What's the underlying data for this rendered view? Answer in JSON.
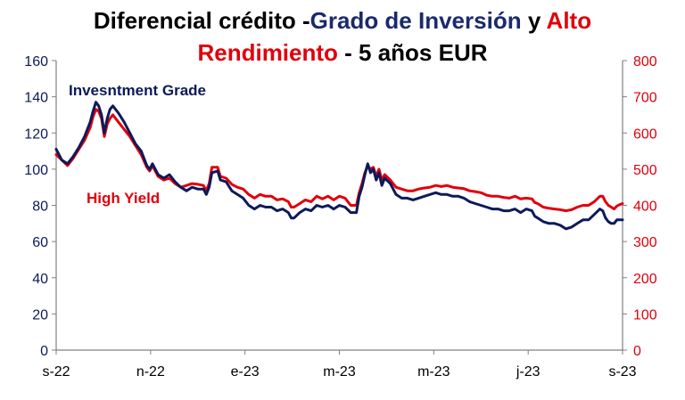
{
  "title": {
    "part1": "Diferencial crédito -",
    "part2": "Grado de Inversión",
    "part3": " y ",
    "part4": "Alto",
    "part5": "Rendimiento",
    "part6": " - 5 años EUR"
  },
  "colors": {
    "investment_grade": "#0d1a5a",
    "high_yield": "#e0000b",
    "axis": "#808080",
    "title_black": "#000000"
  },
  "chart_data": {
    "type": "line",
    "title": "Diferencial crédito -Grado de Inversión y Alto Rendimiento - 5 años EUR",
    "x_tick_labels": [
      "s-22",
      "n-22",
      "e-23",
      "m-23",
      "m-23",
      "j-23",
      "s-23"
    ],
    "y_left": {
      "lim": [
        0,
        160
      ],
      "ticks": [
        "0",
        "20",
        "40",
        "60",
        "80",
        "100",
        "120",
        "140",
        "160"
      ]
    },
    "y_right": {
      "lim": [
        0,
        800
      ],
      "ticks": [
        "0",
        "100",
        "200",
        "300",
        "400",
        "500",
        "600",
        "700",
        "800"
      ]
    },
    "grid": false,
    "x_domain": [
      "s-22",
      "s-23"
    ],
    "series": [
      {
        "name": "Invesntment Grade",
        "axis": "left",
        "values": [
          [
            0,
            111
          ],
          [
            0.01,
            105
          ],
          [
            0.02,
            103
          ],
          [
            0.03,
            107
          ],
          [
            0.04,
            112
          ],
          [
            0.05,
            118
          ],
          [
            0.06,
            126
          ],
          [
            0.065,
            132
          ],
          [
            0.07,
            137
          ],
          [
            0.075,
            135
          ],
          [
            0.08,
            130
          ],
          [
            0.085,
            120
          ],
          [
            0.09,
            128
          ],
          [
            0.095,
            133
          ],
          [
            0.1,
            135
          ],
          [
            0.11,
            131
          ],
          [
            0.12,
            126
          ],
          [
            0.13,
            120
          ],
          [
            0.14,
            114
          ],
          [
            0.15,
            110
          ],
          [
            0.16,
            102
          ],
          [
            0.165,
            100
          ],
          [
            0.17,
            103
          ],
          [
            0.18,
            97
          ],
          [
            0.19,
            95
          ],
          [
            0.2,
            97
          ],
          [
            0.21,
            93
          ],
          [
            0.22,
            90
          ],
          [
            0.23,
            88
          ],
          [
            0.24,
            90
          ],
          [
            0.25,
            89
          ],
          [
            0.26,
            89
          ],
          [
            0.265,
            86
          ],
          [
            0.27,
            90
          ],
          [
            0.275,
            98
          ],
          [
            0.285,
            99
          ],
          [
            0.29,
            94
          ],
          [
            0.3,
            93
          ],
          [
            0.31,
            88
          ],
          [
            0.32,
            86
          ],
          [
            0.33,
            84
          ],
          [
            0.34,
            80
          ],
          [
            0.35,
            78
          ],
          [
            0.36,
            80
          ],
          [
            0.37,
            79
          ],
          [
            0.38,
            79
          ],
          [
            0.39,
            77
          ],
          [
            0.4,
            78
          ],
          [
            0.41,
            76
          ],
          [
            0.415,
            73
          ],
          [
            0.42,
            73
          ],
          [
            0.43,
            76
          ],
          [
            0.44,
            78
          ],
          [
            0.45,
            77
          ],
          [
            0.46,
            80
          ],
          [
            0.47,
            79
          ],
          [
            0.48,
            80
          ],
          [
            0.49,
            78
          ],
          [
            0.5,
            80
          ],
          [
            0.51,
            79
          ],
          [
            0.52,
            76
          ],
          [
            0.53,
            76
          ],
          [
            0.535,
            85
          ],
          [
            0.54,
            90
          ],
          [
            0.545,
            97
          ],
          [
            0.55,
            103
          ],
          [
            0.555,
            98
          ],
          [
            0.56,
            100
          ],
          [
            0.565,
            94
          ],
          [
            0.57,
            98
          ],
          [
            0.575,
            91
          ],
          [
            0.58,
            95
          ],
          [
            0.59,
            92
          ],
          [
            0.6,
            86
          ],
          [
            0.61,
            84
          ],
          [
            0.62,
            84
          ],
          [
            0.63,
            83
          ],
          [
            0.64,
            84
          ],
          [
            0.65,
            85
          ],
          [
            0.66,
            86
          ],
          [
            0.67,
            87
          ],
          [
            0.68,
            86
          ],
          [
            0.69,
            86
          ],
          [
            0.7,
            85
          ],
          [
            0.71,
            85
          ],
          [
            0.72,
            84
          ],
          [
            0.73,
            82
          ],
          [
            0.74,
            81
          ],
          [
            0.75,
            80
          ],
          [
            0.76,
            79
          ],
          [
            0.77,
            78
          ],
          [
            0.78,
            78
          ],
          [
            0.79,
            77
          ],
          [
            0.8,
            77
          ],
          [
            0.81,
            78
          ],
          [
            0.82,
            76
          ],
          [
            0.83,
            78
          ],
          [
            0.84,
            77
          ],
          [
            0.845,
            74
          ],
          [
            0.85,
            73
          ],
          [
            0.86,
            71
          ],
          [
            0.87,
            70
          ],
          [
            0.88,
            70
          ],
          [
            0.89,
            69
          ],
          [
            0.9,
            67
          ],
          [
            0.91,
            68
          ],
          [
            0.92,
            70
          ],
          [
            0.93,
            72
          ],
          [
            0.94,
            72
          ],
          [
            0.95,
            75
          ],
          [
            0.96,
            78
          ],
          [
            0.965,
            77
          ],
          [
            0.97,
            73
          ],
          [
            0.975,
            71
          ],
          [
            0.98,
            70
          ],
          [
            0.985,
            70
          ],
          [
            0.99,
            72
          ],
          [
            0.995,
            72
          ],
          [
            1,
            72
          ]
        ]
      },
      {
        "name": "High Yield",
        "axis": "right",
        "values": [
          [
            0,
            540
          ],
          [
            0.01,
            525
          ],
          [
            0.02,
            510
          ],
          [
            0.03,
            530
          ],
          [
            0.04,
            555
          ],
          [
            0.05,
            580
          ],
          [
            0.06,
            615
          ],
          [
            0.065,
            645
          ],
          [
            0.07,
            665
          ],
          [
            0.075,
            660
          ],
          [
            0.08,
            640
          ],
          [
            0.085,
            590
          ],
          [
            0.09,
            625
          ],
          [
            0.095,
            640
          ],
          [
            0.1,
            650
          ],
          [
            0.11,
            630
          ],
          [
            0.12,
            610
          ],
          [
            0.13,
            590
          ],
          [
            0.14,
            565
          ],
          [
            0.15,
            540
          ],
          [
            0.16,
            505
          ],
          [
            0.165,
            495
          ],
          [
            0.17,
            510
          ],
          [
            0.18,
            480
          ],
          [
            0.19,
            470
          ],
          [
            0.2,
            475
          ],
          [
            0.21,
            460
          ],
          [
            0.22,
            450
          ],
          [
            0.23,
            455
          ],
          [
            0.24,
            460
          ],
          [
            0.25,
            458
          ],
          [
            0.26,
            455
          ],
          [
            0.265,
            440
          ],
          [
            0.27,
            460
          ],
          [
            0.275,
            505
          ],
          [
            0.285,
            505
          ],
          [
            0.29,
            480
          ],
          [
            0.3,
            475
          ],
          [
            0.31,
            458
          ],
          [
            0.32,
            450
          ],
          [
            0.33,
            445
          ],
          [
            0.34,
            430
          ],
          [
            0.35,
            420
          ],
          [
            0.36,
            430
          ],
          [
            0.37,
            425
          ],
          [
            0.38,
            425
          ],
          [
            0.39,
            415
          ],
          [
            0.4,
            418
          ],
          [
            0.41,
            410
          ],
          [
            0.415,
            395
          ],
          [
            0.42,
            395
          ],
          [
            0.43,
            405
          ],
          [
            0.44,
            415
          ],
          [
            0.45,
            410
          ],
          [
            0.46,
            425
          ],
          [
            0.47,
            418
          ],
          [
            0.48,
            425
          ],
          [
            0.49,
            415
          ],
          [
            0.5,
            425
          ],
          [
            0.51,
            420
          ],
          [
            0.52,
            400
          ],
          [
            0.53,
            400
          ],
          [
            0.535,
            435
          ],
          [
            0.54,
            460
          ],
          [
            0.545,
            490
          ],
          [
            0.55,
            510
          ],
          [
            0.555,
            500
          ],
          [
            0.56,
            505
          ],
          [
            0.565,
            480
          ],
          [
            0.57,
            500
          ],
          [
            0.575,
            470
          ],
          [
            0.58,
            485
          ],
          [
            0.59,
            470
          ],
          [
            0.6,
            450
          ],
          [
            0.61,
            445
          ],
          [
            0.62,
            440
          ],
          [
            0.63,
            440
          ],
          [
            0.64,
            445
          ],
          [
            0.65,
            448
          ],
          [
            0.66,
            450
          ],
          [
            0.67,
            455
          ],
          [
            0.68,
            452
          ],
          [
            0.69,
            455
          ],
          [
            0.7,
            450
          ],
          [
            0.71,
            448
          ],
          [
            0.72,
            446
          ],
          [
            0.73,
            440
          ],
          [
            0.74,
            438
          ],
          [
            0.75,
            435
          ],
          [
            0.76,
            428
          ],
          [
            0.77,
            425
          ],
          [
            0.78,
            425
          ],
          [
            0.79,
            422
          ],
          [
            0.8,
            420
          ],
          [
            0.81,
            425
          ],
          [
            0.82,
            418
          ],
          [
            0.83,
            420
          ],
          [
            0.84,
            418
          ],
          [
            0.845,
            408
          ],
          [
            0.85,
            405
          ],
          [
            0.86,
            395
          ],
          [
            0.87,
            392
          ],
          [
            0.88,
            390
          ],
          [
            0.89,
            388
          ],
          [
            0.9,
            385
          ],
          [
            0.91,
            388
          ],
          [
            0.92,
            395
          ],
          [
            0.93,
            400
          ],
          [
            0.94,
            400
          ],
          [
            0.95,
            410
          ],
          [
            0.96,
            425
          ],
          [
            0.965,
            425
          ],
          [
            0.97,
            410
          ],
          [
            0.975,
            400
          ],
          [
            0.98,
            395
          ],
          [
            0.985,
            390
          ],
          [
            0.99,
            398
          ],
          [
            0.995,
            402
          ],
          [
            1,
            405
          ]
        ]
      }
    ],
    "annotations": [
      "Invesntment Grade",
      "High Yield"
    ]
  }
}
